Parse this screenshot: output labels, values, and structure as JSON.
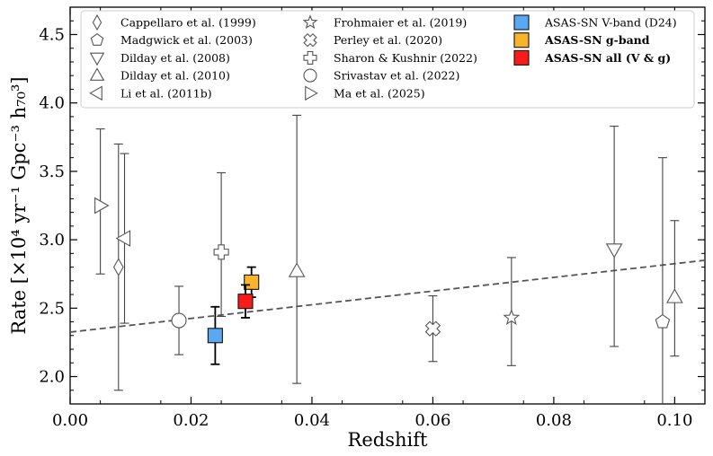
{
  "chart_data": {
    "type": "scatter",
    "xlabel": "Redshift",
    "ylabel": "Rate [×10⁴ yr⁻¹ Gpc⁻³ h₇₀³]",
    "xlim": [
      0.0,
      0.105
    ],
    "ylim": [
      1.8,
      4.7
    ],
    "xticks": [
      0.0,
      0.02,
      0.04,
      0.06,
      0.08,
      0.1
    ],
    "xtick_labels": [
      "0.00",
      "0.02",
      "0.04",
      "0.06",
      "0.08",
      "0.10"
    ],
    "yticks": [
      2.0,
      2.5,
      3.0,
      3.5,
      4.0,
      4.5
    ],
    "ytick_labels": [
      "2.0",
      "2.5",
      "3.0",
      "3.5",
      "4.0",
      "4.5"
    ],
    "grid": false,
    "legend_position": "top",
    "trend_line": {
      "style": "dashed",
      "color": "#555555",
      "x": [
        0.0,
        0.105
      ],
      "y": [
        2.325,
        2.85
      ]
    },
    "series": [
      {
        "name": "Cappellaro et al. (1999)",
        "marker": "diamond",
        "color": "#ffffff",
        "x": [
          0.008
        ],
        "y": [
          2.8
        ],
        "yerr_low": [
          0.9
        ],
        "yerr_high": [
          0.9
        ]
      },
      {
        "name": "Madgwick et al. (2003)",
        "marker": "pentagon",
        "color": "#ffffff",
        "x": [
          0.098
        ],
        "y": [
          2.4
        ],
        "yerr_low": [
          0.62
        ],
        "yerr_high": [
          1.2
        ]
      },
      {
        "name": "Dilday et al. (2008)",
        "marker": "triangle-down",
        "color": "#ffffff",
        "x": [
          0.09
        ],
        "y": [
          2.93
        ],
        "yerr_low": [
          0.71
        ],
        "yerr_high": [
          0.9
        ]
      },
      {
        "name": "Dilday et al. (2010)",
        "marker": "triangle-up",
        "color": "#ffffff",
        "x": [
          0.0375,
          0.1
        ],
        "y": [
          2.77,
          2.58
        ],
        "yerr_low": [
          0.82,
          0.43
        ],
        "yerr_high": [
          1.14,
          0.56
        ]
      },
      {
        "name": "Li et al. (2011b)",
        "marker": "triangle-left",
        "color": "#ffffff",
        "x": [
          0.009
        ],
        "y": [
          3.01
        ],
        "yerr_low": [
          0.62
        ],
        "yerr_high": [
          0.62
        ]
      },
      {
        "name": "Frohmaier et al. (2019)",
        "marker": "star",
        "color": "#ffffff",
        "x": [
          0.073
        ],
        "y": [
          2.43
        ],
        "yerr_low": [
          0.35
        ],
        "yerr_high": [
          0.44
        ]
      },
      {
        "name": "Perley et al. (2020)",
        "marker": "x-cross",
        "color": "#ffffff",
        "x": [
          0.06
        ],
        "y": [
          2.35
        ],
        "yerr_low": [
          0.24
        ],
        "yerr_high": [
          0.24
        ]
      },
      {
        "name": "Sharon & Kushnir (2022)",
        "marker": "plus-cross",
        "color": "#ffffff",
        "x": [
          0.025
        ],
        "y": [
          2.91
        ],
        "yerr_low": [
          0.47
        ],
        "yerr_high": [
          0.58
        ]
      },
      {
        "name": "Srivastav et al. (2022)",
        "marker": "circle",
        "color": "#ffffff",
        "x": [
          0.018
        ],
        "y": [
          2.41
        ],
        "yerr_low": [
          0.25
        ],
        "yerr_high": [
          0.25
        ]
      },
      {
        "name": "Ma et al. (2025)",
        "marker": "triangle-right",
        "color": "#ffffff",
        "x": [
          0.005
        ],
        "y": [
          3.25
        ],
        "yerr_low": [
          0.5
        ],
        "yerr_high": [
          0.56
        ]
      },
      {
        "name": "ASAS-SN V-band (D24)",
        "marker": "square",
        "color": "#5aa7f2",
        "x": [
          0.024
        ],
        "y": [
          2.3
        ],
        "yerr_low": [
          0.21
        ],
        "yerr_high": [
          0.21
        ]
      },
      {
        "name": "ASAS-SN g-band",
        "marker": "square",
        "color": "#f9b52a",
        "x": [
          0.03
        ],
        "y": [
          2.69
        ],
        "yerr_low": [
          0.11
        ],
        "yerr_high": [
          0.11
        ]
      },
      {
        "name": "ASAS-SN all (V & g)",
        "marker": "square",
        "color": "#fb1a1a",
        "x": [
          0.029
        ],
        "y": [
          2.55
        ],
        "yerr_low": [
          0.12
        ],
        "yerr_high": [
          0.12
        ]
      }
    ],
    "legend_bold": [
      "ASAS-SN g-band",
      "ASAS-SN all (V & g)"
    ]
  }
}
